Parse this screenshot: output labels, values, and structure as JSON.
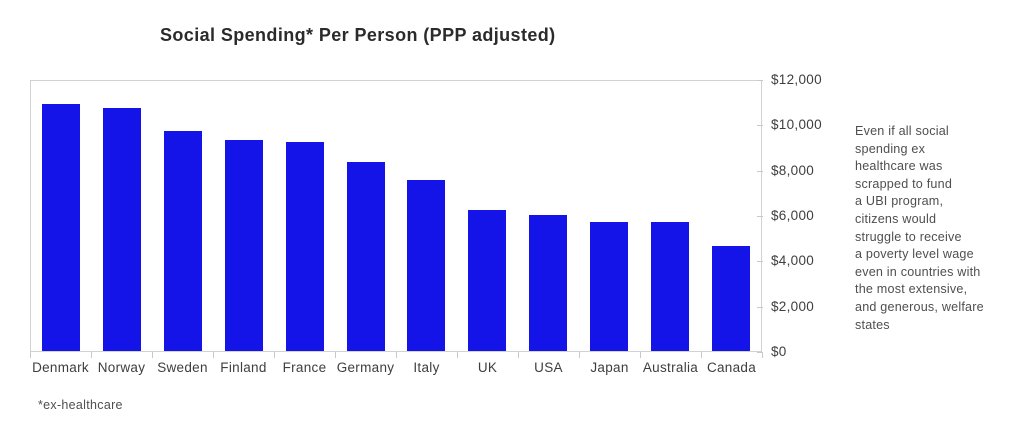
{
  "title": "Social Spending* Per Person (PPP adjusted)",
  "footnote": "*ex-healthcare",
  "annotation": "Even if all social\nspending ex\nhealthcare was\nscrapped to fund\na UBI program,\ncitizens would\nstruggle to receive\na poverty level wage\neven in countries with\nthe most extensive,\nand generous, welfare\nstates",
  "colors": {
    "bar": "#1414e8",
    "axis_line": "#d2d2d2",
    "tick": "#c9c9c9",
    "title_text": "#2b2b2b",
    "label_text": "#3e3e3e",
    "annotation_text": "#4f4f4f",
    "background": "#ffffff"
  },
  "chart_data": {
    "type": "bar",
    "title": "Social Spending* Per Person (PPP adjusted)",
    "xlabel": "",
    "ylabel": "",
    "categories": [
      "Denmark",
      "Norway",
      "Sweden",
      "Finland",
      "France",
      "Germany",
      "Italy",
      "UK",
      "USA",
      "Japan",
      "Australia",
      "Canada"
    ],
    "values": [
      11000,
      10800,
      9800,
      9400,
      9300,
      8400,
      7600,
      6250,
      6050,
      5750,
      5750,
      4650
    ],
    "ylim": [
      0,
      12000
    ],
    "y_tick_values": [
      12000,
      10000,
      8000,
      6000,
      4000,
      2000,
      0
    ],
    "y_tick_labels": [
      "$12,000",
      "$10,000",
      "$8,000",
      "$6,000",
      "$4,000",
      "$2,000",
      "$0"
    ],
    "y_axis_side": "right",
    "grid": false,
    "legend": false,
    "bar_color": "#1414e8",
    "footnote": "*ex-healthcare",
    "annotation": "Even if all social spending ex healthcare was scrapped to fund a UBI program, citizens would struggle to receive a poverty level wage even in countries with the most extensive, and generous, welfare states"
  }
}
